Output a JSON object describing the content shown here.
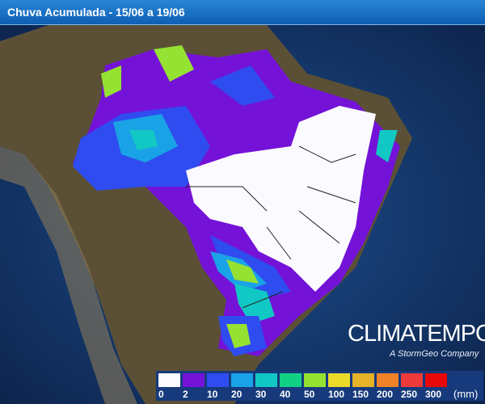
{
  "header": {
    "title": "Chuva Acumulada - 15/06 a 19/06"
  },
  "legend": {
    "colors": [
      "#fbfbff",
      "#7412d8",
      "#2f4cf0",
      "#1aa2e6",
      "#12c8c4",
      "#12cf86",
      "#96e232",
      "#eada2a",
      "#e6b22a",
      "#ee8228",
      "#ee3a3a",
      "#e80808"
    ],
    "labels": [
      "0",
      "2",
      "10",
      "20",
      "30",
      "40",
      "50",
      "100",
      "150",
      "200",
      "250",
      "300"
    ],
    "unit": "(mm)"
  },
  "logo": {
    "name": "CLIMATEMPO",
    "tagline": "A StormGeo Company"
  }
}
